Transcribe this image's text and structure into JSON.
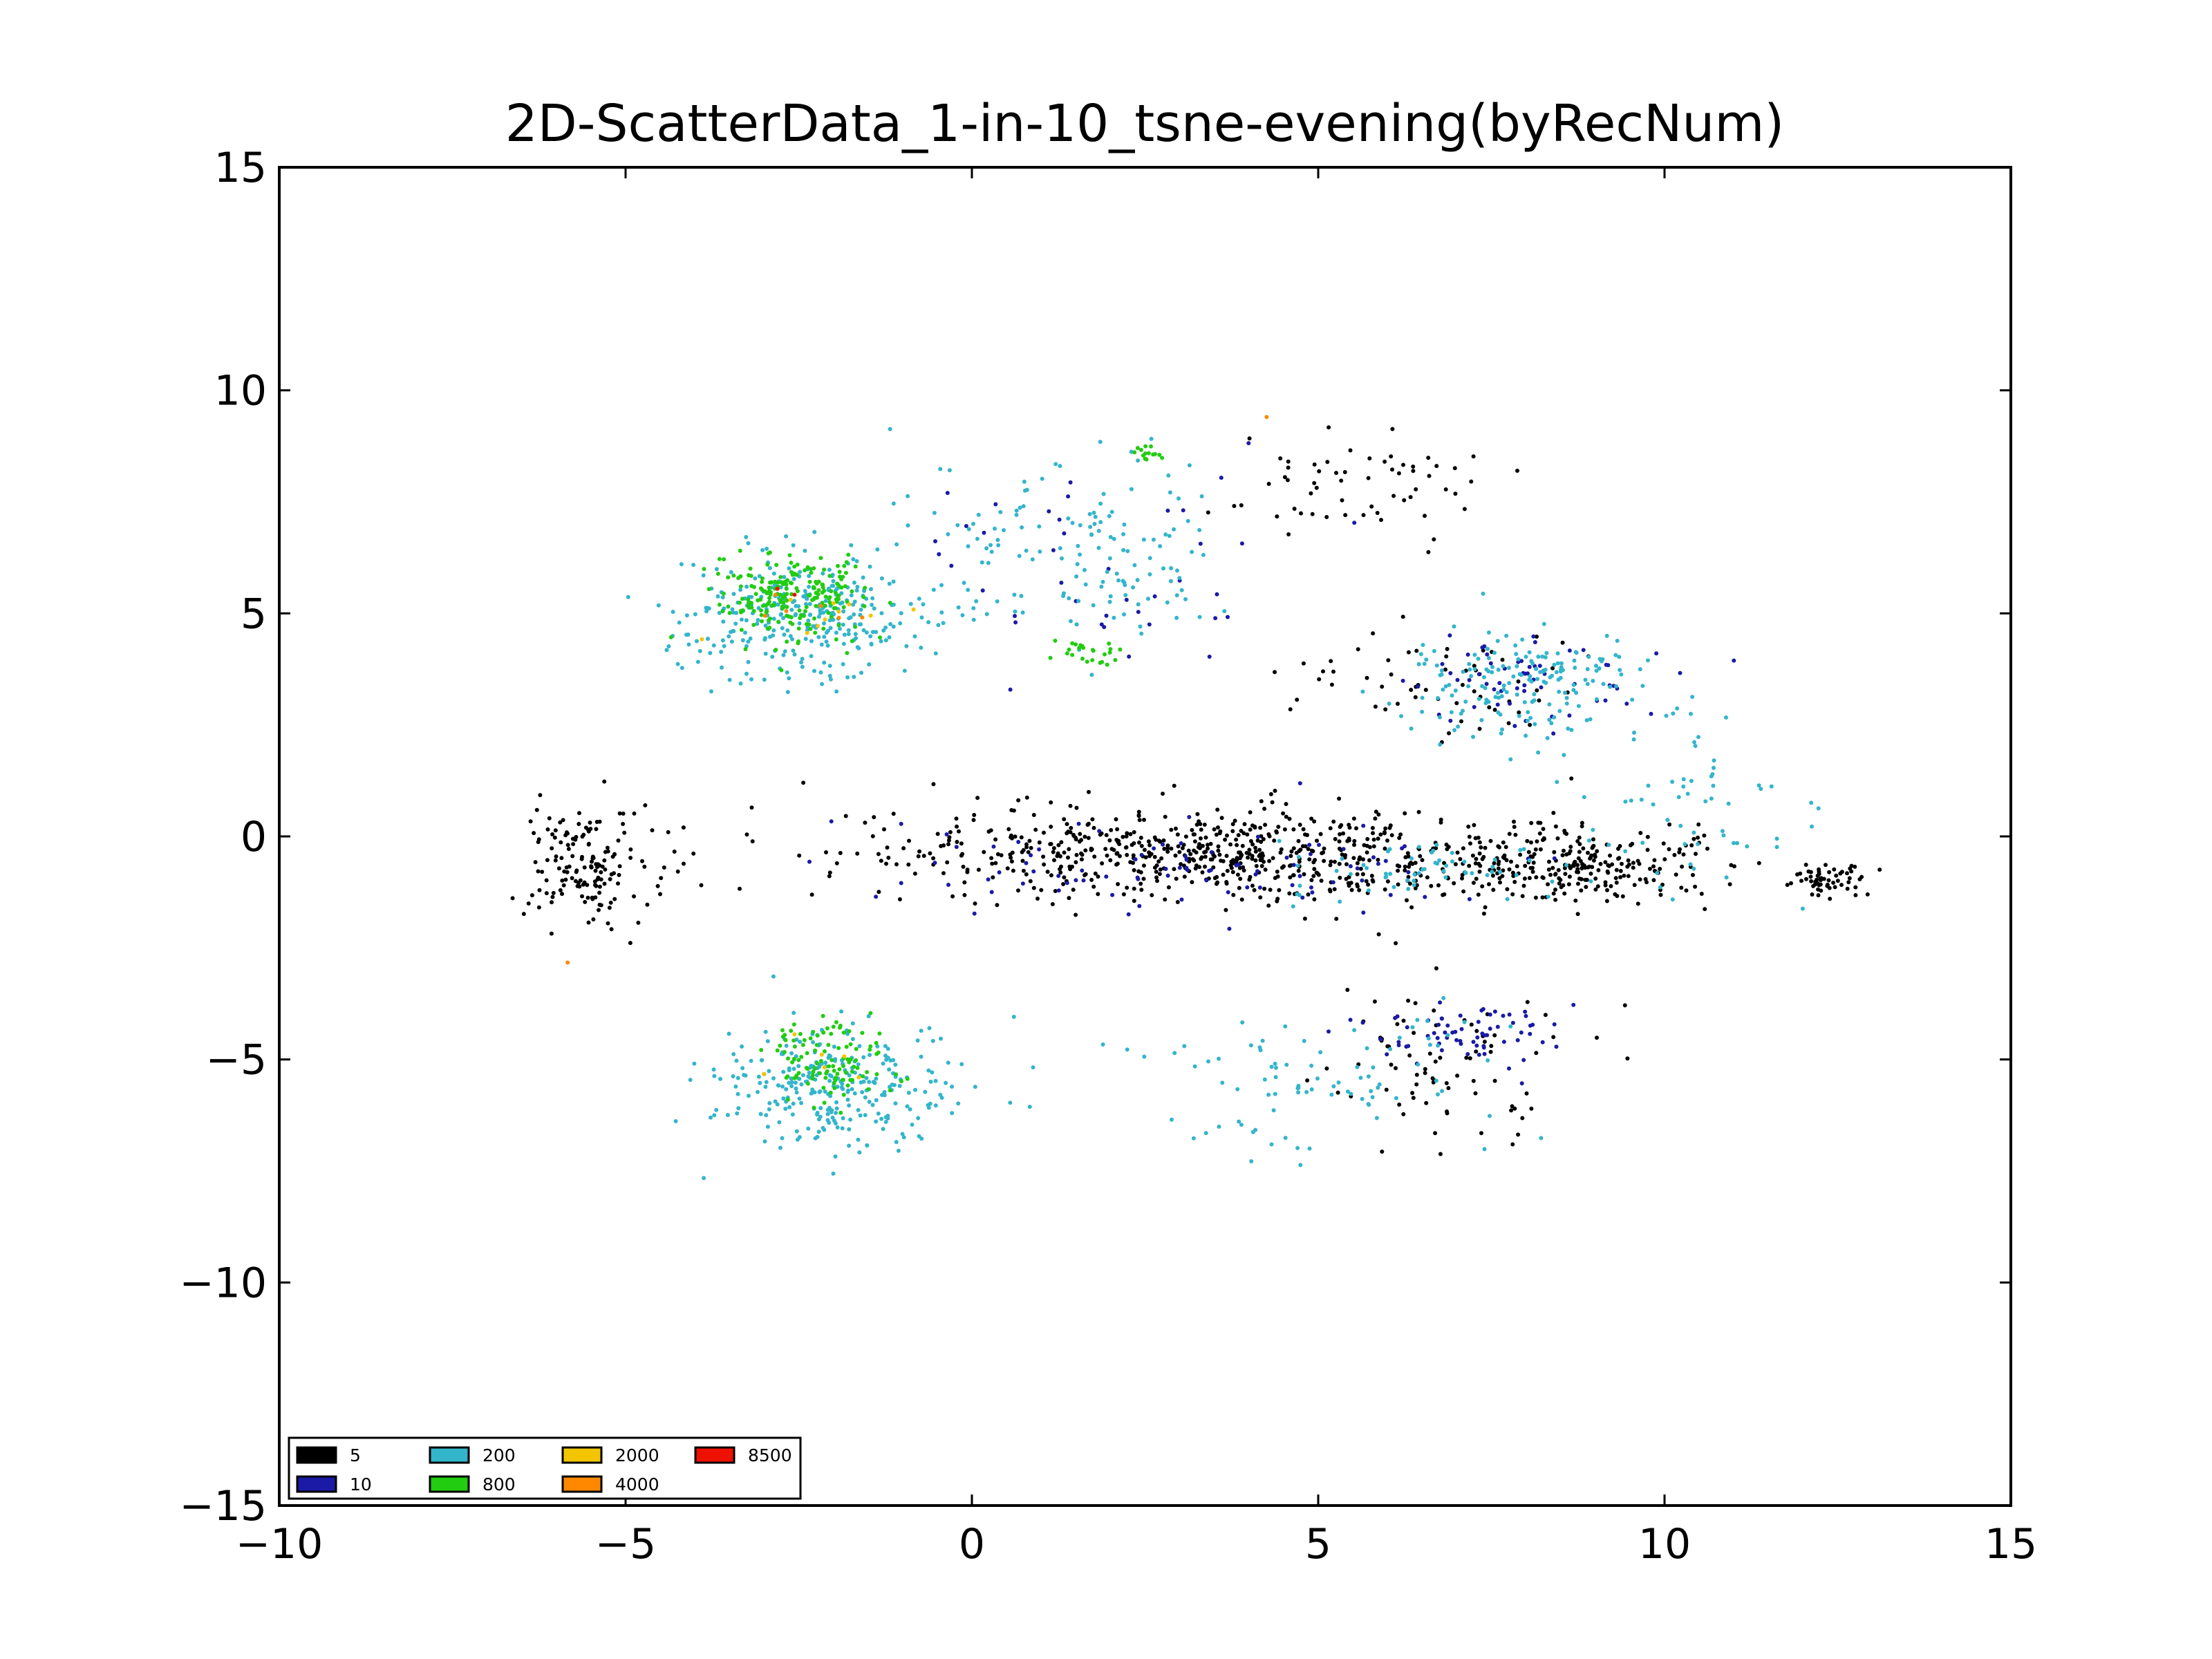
{
  "chart_data": {
    "type": "scatter",
    "title": "2D-ScatterData_1-in-10_tsne-evening(byRecNum)",
    "xlabel": "",
    "ylabel": "",
    "xlim": [
      -10,
      15
    ],
    "ylim": [
      -15,
      15
    ],
    "xticks": [
      -10,
      -5,
      0,
      5,
      10,
      15
    ],
    "yticks": [
      -15,
      -10,
      -5,
      0,
      5,
      10,
      15
    ],
    "xtick_labels": [
      "−10",
      "−5",
      "0",
      "5",
      "10",
      "15"
    ],
    "ytick_labels": [
      "−15",
      "−10",
      "−5",
      "0",
      "5",
      "10",
      "15"
    ],
    "grid": false,
    "legend_position": "lower-left",
    "series": [
      {
        "name": "5",
        "color": "#000000",
        "clusters": [
          {
            "cx": 3.5,
            "cy": -0.4,
            "sx": 4.6,
            "sy": 0.9,
            "n": 700
          },
          {
            "cx": -5.5,
            "cy": -0.6,
            "sx": 0.9,
            "sy": 1.3,
            "n": 160
          },
          {
            "cx": 8.5,
            "cy": -0.7,
            "sx": 2.0,
            "sy": 0.7,
            "n": 250
          },
          {
            "cx": 12.4,
            "cy": -1.0,
            "sx": 0.5,
            "sy": 0.35,
            "n": 60
          },
          {
            "cx": 5.5,
            "cy": 8.0,
            "sx": 1.6,
            "sy": 1.2,
            "n": 60
          },
          {
            "cx": 6.8,
            "cy": -5.0,
            "sx": 1.6,
            "sy": 1.8,
            "n": 80
          },
          {
            "cx": 6.5,
            "cy": 3.5,
            "sx": 2.0,
            "sy": 1.2,
            "n": 60
          }
        ]
      },
      {
        "name": "10",
        "color": "#1a1aa6",
        "clusters": [
          {
            "cx": 3.0,
            "cy": -0.7,
            "sx": 4.5,
            "sy": 1.0,
            "n": 90
          },
          {
            "cx": 7.2,
            "cy": -4.4,
            "sx": 1.4,
            "sy": 0.6,
            "n": 70
          },
          {
            "cx": 8.0,
            "cy": 3.6,
            "sx": 1.6,
            "sy": 0.9,
            "n": 60
          },
          {
            "cx": 1.5,
            "cy": 6.0,
            "sx": 3.0,
            "sy": 2.5,
            "n": 40
          }
        ]
      },
      {
        "name": "200",
        "color": "#33b5cc",
        "clusters": [
          {
            "cx": -2.5,
            "cy": 5.0,
            "sx": 1.6,
            "sy": 1.3,
            "n": 330
          },
          {
            "cx": -2.0,
            "cy": -5.5,
            "sx": 1.5,
            "sy": 1.3,
            "n": 300
          },
          {
            "cx": 8.0,
            "cy": 3.4,
            "sx": 1.8,
            "sy": 1.1,
            "n": 180
          },
          {
            "cx": 1.5,
            "cy": 6.5,
            "sx": 2.0,
            "sy": 1.8,
            "n": 150
          },
          {
            "cx": 5.0,
            "cy": -5.5,
            "sx": 2.5,
            "sy": 1.8,
            "n": 90
          },
          {
            "cx": 10.5,
            "cy": 0.5,
            "sx": 1.8,
            "sy": 2.0,
            "n": 60
          },
          {
            "cx": 6.5,
            "cy": -0.8,
            "sx": 2.0,
            "sy": 0.6,
            "n": 60
          }
        ]
      },
      {
        "name": "800",
        "color": "#22cc11",
        "clusters": [
          {
            "cx": -2.6,
            "cy": 5.4,
            "sx": 1.0,
            "sy": 0.9,
            "n": 210
          },
          {
            "cx": -2.0,
            "cy": -5.0,
            "sx": 0.9,
            "sy": 0.9,
            "n": 110
          },
          {
            "cx": 1.7,
            "cy": 4.2,
            "sx": 0.4,
            "sy": 0.3,
            "n": 25
          },
          {
            "cx": 2.5,
            "cy": 8.6,
            "sx": 0.4,
            "sy": 0.3,
            "n": 15
          }
        ]
      },
      {
        "name": "2000",
        "color": "#f2c500",
        "clusters": [
          {
            "cx": -2.5,
            "cy": 5.2,
            "sx": 0.9,
            "sy": 0.8,
            "n": 10
          },
          {
            "cx": -2.0,
            "cy": -5.2,
            "sx": 0.9,
            "sy": 0.8,
            "n": 6
          }
        ]
      },
      {
        "name": "4000",
        "color": "#ff8800",
        "clusters": [
          {
            "cx": -2.6,
            "cy": 5.3,
            "sx": 0.6,
            "sy": 0.5,
            "n": 6
          },
          {
            "cx": 4.3,
            "cy": 9.4,
            "sx": 0.1,
            "sy": 0.1,
            "n": 1
          },
          {
            "cx": -5.9,
            "cy": -2.9,
            "sx": 0.1,
            "sy": 0.1,
            "n": 1
          }
        ]
      },
      {
        "name": "8500",
        "color": "#ee1100",
        "clusters": [
          {
            "cx": -2.6,
            "cy": 5.4,
            "sx": 0.15,
            "sy": 0.15,
            "n": 2
          }
        ]
      }
    ]
  }
}
